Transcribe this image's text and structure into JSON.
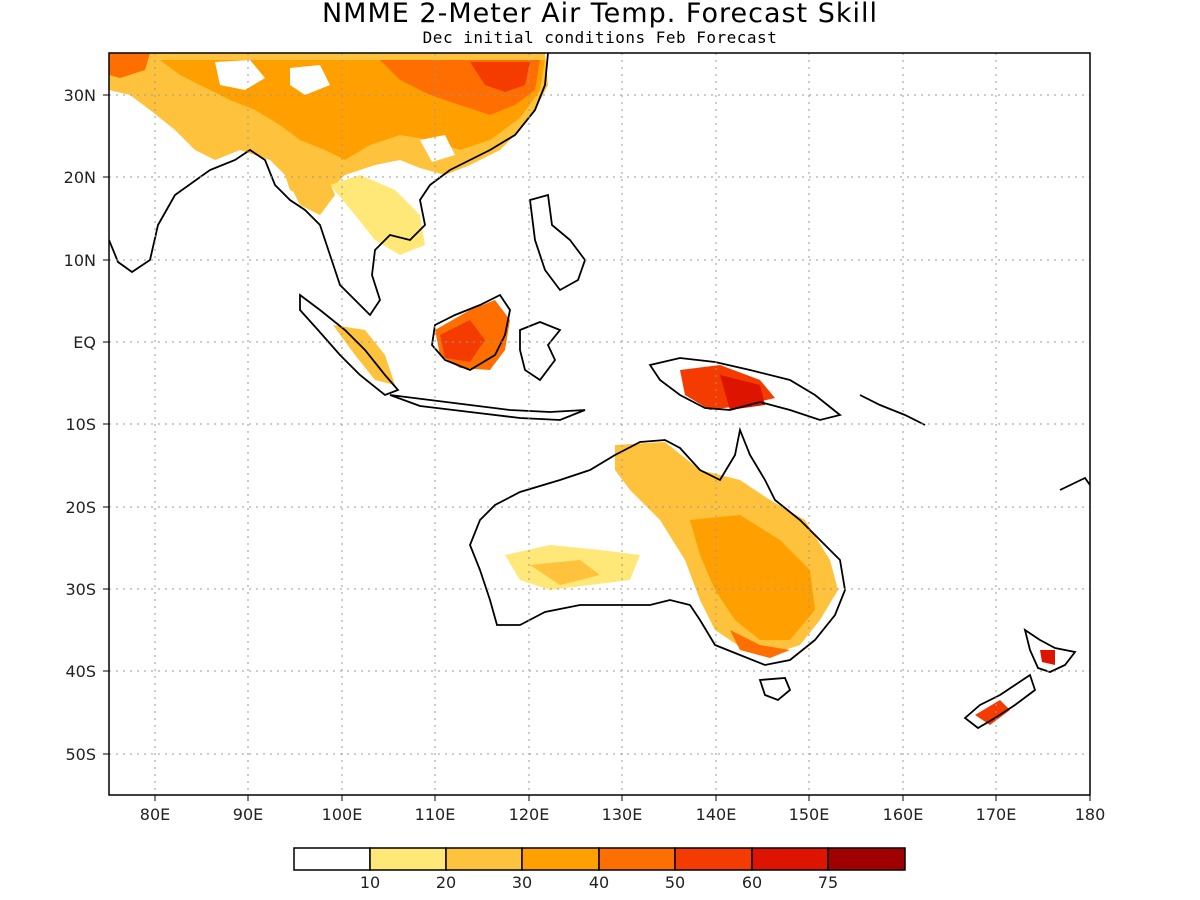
{
  "title": "NMME 2-Meter Air Temp. Forecast Skill",
  "subtitle": "Dec initial conditions  Feb Forecast",
  "map": {
    "lon_range": [
      75,
      180
    ],
    "lat_range": [
      -55,
      35
    ],
    "grid": true
  },
  "axes": {
    "x_ticks": [
      "80E",
      "90E",
      "100E",
      "110E",
      "120E",
      "130E",
      "140E",
      "150E",
      "160E",
      "170E",
      "180"
    ],
    "y_ticks": [
      "30N",
      "20N",
      "10N",
      "EQ",
      "10S",
      "20S",
      "30S",
      "40S",
      "50S"
    ]
  },
  "legend": {
    "labels": [
      "10",
      "20",
      "30",
      "40",
      "50",
      "60",
      "75"
    ],
    "colors": [
      "#ffffff",
      "#ffe778",
      "#ffc23c",
      "#ffa000",
      "#ff6e00",
      "#f53c00",
      "#dc1400",
      "#a00000"
    ]
  }
}
